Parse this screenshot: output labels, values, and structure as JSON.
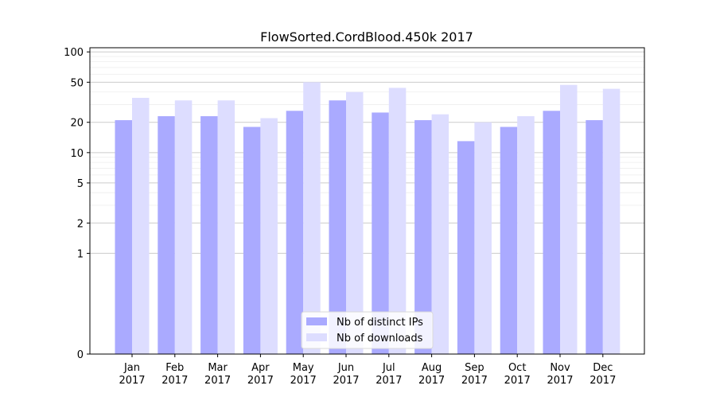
{
  "chart_data": {
    "type": "bar",
    "title": "FlowSorted.CordBlood.450k 2017",
    "xlabel": "",
    "ylabel": "",
    "y_scale": "symlog",
    "ylim": [
      0,
      110
    ],
    "yticks": [
      0,
      1,
      2,
      5,
      10,
      20,
      50,
      100
    ],
    "ytick_labels": [
      "0",
      "1",
      "2",
      "5",
      "10",
      "20",
      "50",
      "100"
    ],
    "categories": [
      "Jan\n2017",
      "Feb\n2017",
      "Mar\n2017",
      "Apr\n2017",
      "May\n2017",
      "Jun\n2017",
      "Jul\n2017",
      "Aug\n2017",
      "Sep\n2017",
      "Oct\n2017",
      "Nov\n2017",
      "Dec\n2017"
    ],
    "series": [
      {
        "name": "Nb of distinct IPs",
        "color": "#aaaaff",
        "values": [
          21,
          23,
          23,
          18,
          26,
          33,
          25,
          21,
          13,
          18,
          26,
          21
        ]
      },
      {
        "name": "Nb of downloads",
        "color": "#ddddff",
        "values": [
          35,
          33,
          33,
          22,
          50,
          40,
          44,
          24,
          20,
          23,
          47,
          43
        ]
      }
    ],
    "grid": true,
    "legend_position": "bottom-center"
  }
}
